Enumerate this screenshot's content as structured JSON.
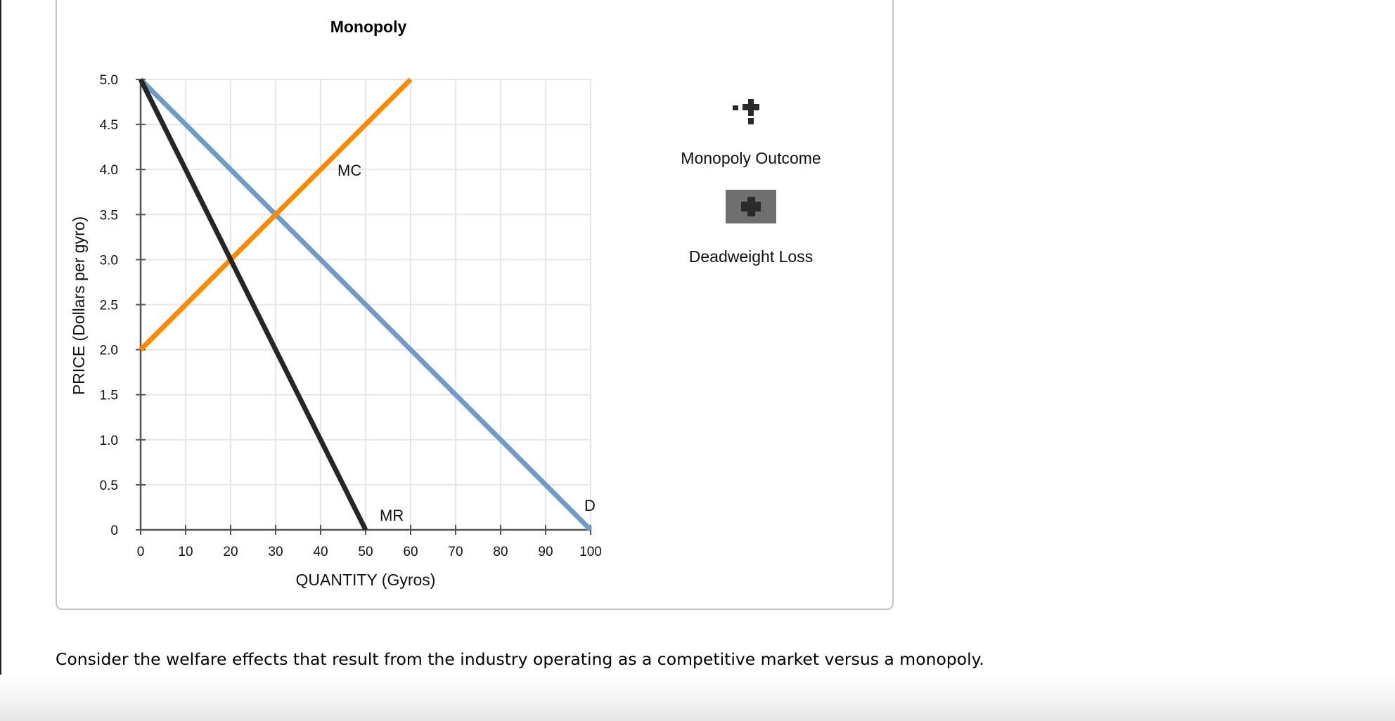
{
  "chart_data": {
    "type": "line",
    "title": "Monopoly",
    "xlabel": "QUANTITY (Gyros)",
    "ylabel": "PRICE (Dollars per gyro)",
    "xlim": [
      0,
      100
    ],
    "ylim": [
      0,
      5.0
    ],
    "x_ticks": [
      "0",
      "10",
      "20",
      "30",
      "40",
      "50",
      "60",
      "70",
      "80",
      "90",
      "100"
    ],
    "y_ticks": [
      "0",
      "0.5",
      "1.0",
      "1.5",
      "2.0",
      "2.5",
      "3.0",
      "3.5",
      "4.0",
      "4.5",
      "5.0"
    ],
    "grid": true,
    "series": [
      {
        "name": "D",
        "label": "D",
        "color": "#6f9bc9",
        "points": [
          [
            0,
            5.0
          ],
          [
            100,
            0
          ]
        ]
      },
      {
        "name": "MR",
        "label": "MR",
        "color": "#262626",
        "points": [
          [
            0,
            5.0
          ],
          [
            50,
            0
          ]
        ]
      },
      {
        "name": "MC",
        "label": "MC",
        "color": "#ff8a00",
        "points": [
          [
            0,
            2.0
          ],
          [
            60,
            5.0
          ]
        ]
      }
    ],
    "legend": [
      {
        "label": "Monopoly Outcome",
        "icon": "triple-point-marker-icon"
      },
      {
        "label": "Deadweight Loss",
        "icon": "shaded-area-marker-icon"
      }
    ],
    "legend_position": "right"
  },
  "chart": {
    "title": "Monopoly",
    "xlabel": "QUANTITY (Gyros)",
    "ylabel": "PRICE (Dollars per gyro)",
    "curve_labels": {
      "mc": "MC",
      "mr": "MR",
      "d": "D"
    }
  },
  "legend": {
    "monopoly_outcome": "Monopoly Outcome",
    "deadweight_loss": "Deadweight Loss"
  },
  "question": {
    "text": "Consider the welfare effects that result from the industry operating as a competitive market versus a monopoly."
  },
  "colors": {
    "demand": "#6f9bc9",
    "marginal_revenue": "#262626",
    "marginal_cost": "#ff8a00",
    "deadweight_fill": "#6f6f6f",
    "marker": "#2a2a2a"
  }
}
